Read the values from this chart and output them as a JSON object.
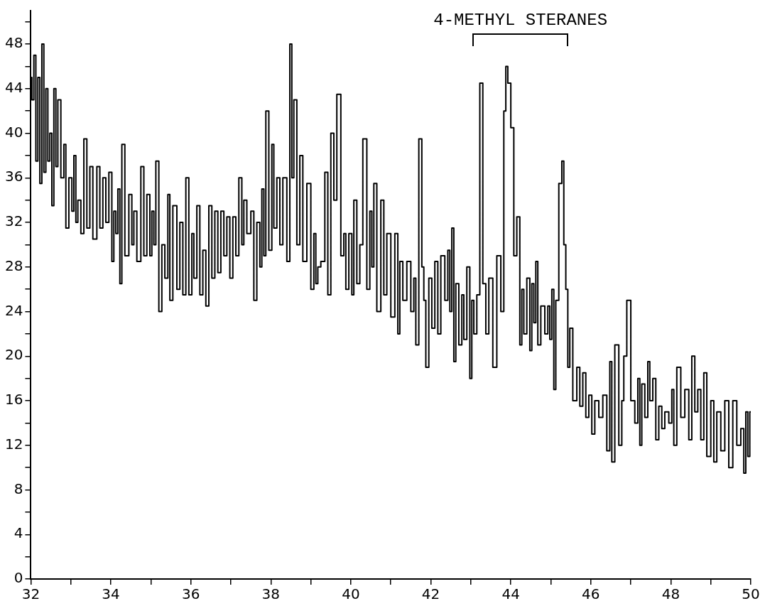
{
  "chart_data": {
    "type": "step",
    "xlim": [
      32,
      50
    ],
    "ylim": [
      0,
      51
    ],
    "xticks": [
      32,
      {
        "value": 33,
        "label": null
      },
      34,
      {
        "value": 35,
        "label": null
      },
      36,
      {
        "value": 37,
        "label": null
      },
      38,
      {
        "value": 39,
        "label": null
      },
      40,
      {
        "value": 41,
        "label": null
      },
      42,
      {
        "value": 43,
        "label": null
      },
      44,
      {
        "value": 45,
        "label": null
      },
      46,
      {
        "value": 47,
        "label": null
      },
      48,
      {
        "value": 49,
        "label": null
      },
      50
    ],
    "yticks": [
      0,
      {
        "value": 2,
        "label": null
      },
      4,
      {
        "value": 6,
        "label": null
      },
      8,
      {
        "value": 10,
        "label": null
      },
      12,
      {
        "value": 14,
        "label": null
      },
      16,
      {
        "value": 18,
        "label": null
      },
      20,
      {
        "value": 22,
        "label": null
      },
      24,
      {
        "value": 26,
        "label": null
      },
      28,
      {
        "value": 30,
        "label": null
      },
      32,
      {
        "value": 34,
        "label": null
      },
      36,
      {
        "value": 38,
        "label": null
      },
      40,
      {
        "value": 42,
        "label": null
      },
      44,
      {
        "value": 46,
        "label": null
      },
      48,
      {
        "value": 50,
        "label": null
      }
    ],
    "grid": false,
    "legend": false,
    "marker": "none",
    "line_style": "solid",
    "annotations": [
      "4-METHYL STERANES"
    ],
    "series": [
      {
        "color": "#000000",
        "x": [
          32.0,
          32.05,
          32.1,
          32.15,
          32.2,
          32.25,
          32.3,
          32.35,
          32.4,
          32.45,
          32.5,
          32.55,
          32.6,
          32.65,
          32.7,
          32.8,
          32.85,
          32.9,
          33.0,
          33.05,
          33.1,
          33.15,
          33.2,
          33.3,
          33.35,
          33.45,
          33.5,
          33.6,
          33.7,
          33.75,
          33.85,
          33.9,
          34.0,
          34.05,
          34.1,
          34.15,
          34.2,
          34.25,
          34.3,
          34.4,
          34.5,
          34.55,
          34.6,
          34.7,
          34.8,
          34.85,
          34.95,
          35.0,
          35.05,
          35.1,
          35.15,
          35.25,
          35.3,
          35.4,
          35.45,
          35.5,
          35.6,
          35.7,
          35.75,
          35.85,
          35.9,
          36.0,
          36.05,
          36.1,
          36.2,
          36.25,
          36.35,
          36.4,
          36.5,
          36.55,
          36.65,
          36.7,
          36.8,
          36.85,
          36.95,
          37.0,
          37.1,
          37.15,
          37.25,
          37.3,
          37.35,
          37.45,
          37.55,
          37.6,
          37.7,
          37.75,
          37.8,
          37.85,
          37.9,
          38.0,
          38.05,
          38.1,
          38.2,
          38.25,
          38.35,
          38.45,
          38.5,
          38.55,
          38.6,
          38.7,
          38.75,
          38.85,
          38.95,
          39.05,
          39.1,
          39.15,
          39.2,
          39.3,
          39.4,
          39.45,
          39.55,
          39.6,
          39.7,
          39.8,
          39.85,
          39.9,
          40.0,
          40.05,
          40.1,
          40.2,
          40.25,
          40.35,
          40.45,
          40.5,
          40.55,
          40.6,
          40.7,
          40.8,
          40.85,
          40.95,
          41.05,
          41.15,
          41.2,
          41.25,
          41.35,
          41.45,
          41.55,
          41.6,
          41.65,
          41.75,
          41.8,
          41.85,
          41.9,
          42.0,
          42.05,
          42.15,
          42.2,
          42.3,
          42.4,
          42.45,
          42.5,
          42.55,
          42.6,
          42.65,
          42.75,
          42.8,
          42.85,
          42.95,
          43.0,
          43.05,
          43.1,
          43.2,
          43.25,
          43.35,
          43.4,
          43.5,
          43.6,
          43.7,
          43.8,
          43.85,
          43.9,
          43.95,
          44.05,
          44.1,
          44.2,
          44.25,
          44.3,
          44.35,
          44.45,
          44.5,
          44.55,
          44.6,
          44.65,
          44.7,
          44.8,
          44.9,
          44.95,
          45.0,
          45.05,
          45.1,
          45.15,
          45.25,
          45.3,
          45.35,
          45.4,
          45.45,
          45.5,
          45.6,
          45.7,
          45.75,
          45.85,
          45.9,
          46.0,
          46.05,
          46.15,
          46.25,
          46.35,
          46.45,
          46.5,
          46.55,
          46.65,
          46.75,
          46.8,
          46.85,
          46.95,
          47.05,
          47.15,
          47.2,
          47.25,
          47.3,
          47.4,
          47.45,
          47.5,
          47.6,
          47.65,
          47.75,
          47.8,
          47.9,
          48.0,
          48.05,
          48.1,
          48.2,
          48.3,
          48.4,
          48.5,
          48.55,
          48.65,
          48.7,
          48.8,
          48.85,
          48.95,
          49.05,
          49.1,
          49.2,
          49.3,
          49.4,
          49.5,
          49.6,
          49.7,
          49.8,
          49.85,
          49.9,
          49.95,
          50.0
        ],
        "values": [
          45,
          43,
          47,
          37.5,
          45,
          35.5,
          48,
          36.5,
          44,
          37.5,
          40,
          33.5,
          44,
          37,
          43,
          36,
          39,
          31.5,
          36,
          33,
          38,
          32,
          34,
          31,
          39.5,
          31.5,
          37,
          30.5,
          37,
          31.5,
          36,
          32,
          36.5,
          28.5,
          33,
          31,
          35,
          26.5,
          39,
          29,
          34.5,
          30,
          33,
          28.5,
          37,
          29,
          34.5,
          29,
          33,
          30,
          37.5,
          24,
          30,
          27,
          34.5,
          25,
          33.5,
          26,
          32,
          25.5,
          36,
          25.5,
          31,
          27,
          33.5,
          25.5,
          29.5,
          24.5,
          33.5,
          27,
          33,
          27.5,
          33,
          29,
          32.5,
          27,
          32.5,
          29,
          36,
          30,
          34,
          31,
          33,
          25,
          32,
          28,
          35,
          29,
          42,
          29.5,
          39,
          31.5,
          36,
          30,
          36,
          28.5,
          48,
          36,
          43,
          30,
          38,
          28.5,
          35.5,
          26,
          31,
          26.5,
          28,
          28.5,
          36.5,
          25.5,
          40,
          34,
          43.5,
          29,
          31,
          26,
          31,
          25.5,
          34,
          26.5,
          30,
          39.5,
          26,
          33,
          28,
          35.5,
          24,
          34,
          25.5,
          31,
          23.5,
          31,
          22,
          28.5,
          25,
          28.5,
          24,
          27,
          21,
          39.5,
          28,
          25,
          19,
          27,
          22.5,
          28.5,
          22,
          29,
          25,
          29.5,
          24,
          31.5,
          19.5,
          26.5,
          21,
          25.5,
          21.5,
          28,
          18,
          25,
          22,
          25.5,
          44.5,
          26.5,
          22,
          27,
          19,
          29,
          24,
          42,
          46,
          44.5,
          40.5,
          29,
          32.5,
          21,
          26,
          22,
          27,
          20.5,
          26.5,
          23,
          28.5,
          21,
          24.5,
          22,
          24.5,
          21.5,
          26,
          17,
          25,
          35.5,
          37.5,
          30,
          26,
          19,
          22.5,
          16,
          19,
          15.5,
          18.5,
          14.5,
          16.5,
          13,
          16,
          14.5,
          16.5,
          11.5,
          19.5,
          10.5,
          21,
          12,
          16,
          20,
          25,
          16,
          14,
          18,
          12,
          17.5,
          14.5,
          19.5,
          16,
          18,
          12.5,
          15.5,
          13.5,
          15,
          14,
          17,
          12,
          19,
          14.5,
          17,
          12.5,
          20,
          15,
          17,
          12.5,
          18.5,
          11,
          16,
          10.5,
          15,
          11.5,
          16,
          10,
          16,
          12,
          13.5,
          9.5,
          15,
          11,
          15
        ]
      }
    ]
  }
}
